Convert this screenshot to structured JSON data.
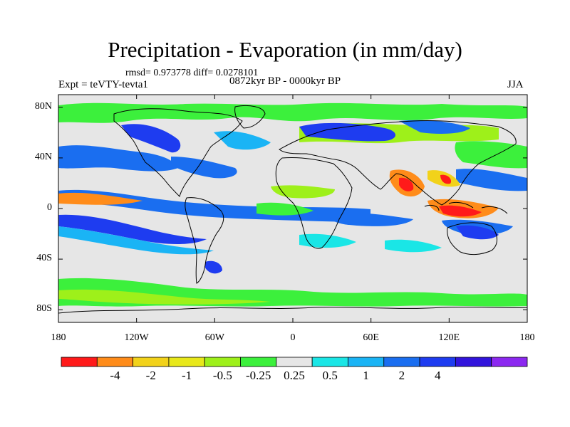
{
  "title": "Precipitation - Evaporation (in mm/day)",
  "stats": "rmsd= 0.973778 diff= 0.0278101",
  "period": "0872kyr BP - 0000kyr BP",
  "experiment": "Expt = teVTY-tevta1",
  "season": "JJA",
  "lat_labels": [
    "80N",
    "40N",
    "0",
    "40S",
    "80S"
  ],
  "lon_labels": [
    "180",
    "120W",
    "60W",
    "0",
    "60E",
    "120E",
    "180"
  ],
  "colorbar": {
    "colors": [
      "#ff1a1a",
      "#ff8c1a",
      "#f2d21a",
      "#e8e81a",
      "#9ef01a",
      "#3cf03c",
      "#e6e6e6",
      "#1ae6e6",
      "#1ab4f5",
      "#1a6ef0",
      "#1e3cf0",
      "#3214dc",
      "#8c28f0"
    ],
    "labels": [
      "-4",
      "-2",
      "-1",
      "-0.5",
      "-0.25",
      "0.25",
      "0.5",
      "1",
      "2",
      "4"
    ]
  },
  "colors": {
    "background_land_ocean": "#e6e6e6",
    "coast": "#000000"
  }
}
